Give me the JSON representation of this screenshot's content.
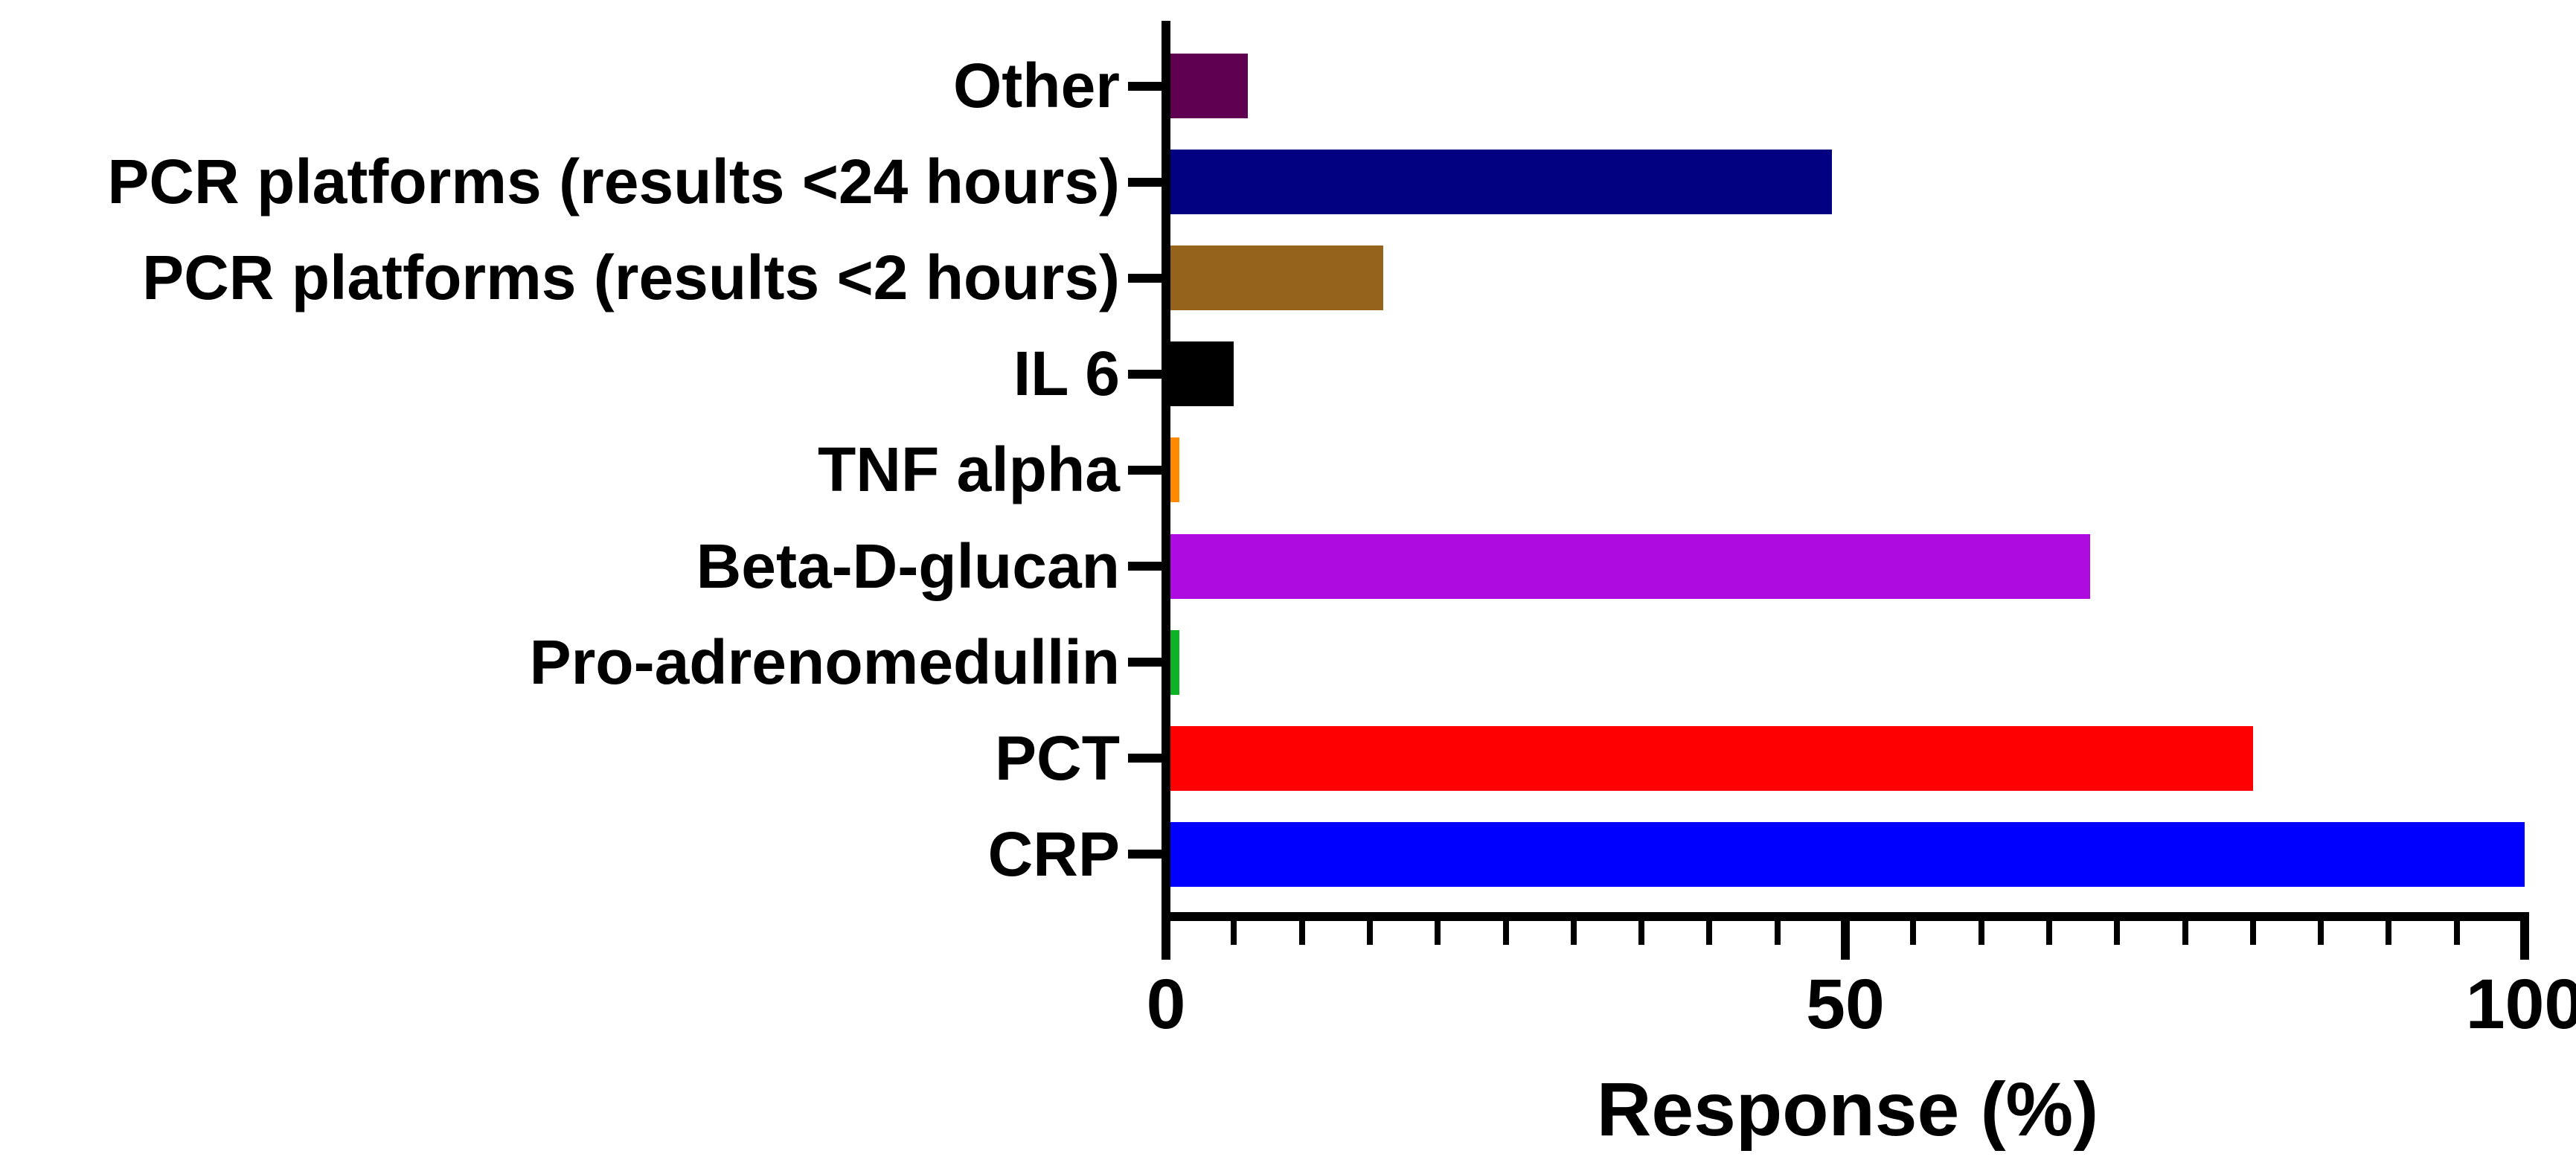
{
  "figure": {
    "background_color": "#FFFFFF",
    "axis_color": "#000000",
    "text_color": "#000000"
  },
  "chart_data": {
    "type": "bar",
    "orientation": "horizontal",
    "title": "",
    "xlabel": "Response (%)",
    "ylabel": "",
    "categories": [
      "Other",
      "PCR platforms (results <24 hours)",
      "PCR platforms (results <2 hours)",
      "IL 6",
      "TNF alpha",
      "Beta-D-glucan",
      "Pro-adrenomedullin",
      "PCT",
      "CRP"
    ],
    "values": [
      6,
      49,
      16,
      5,
      1,
      68,
      1,
      80,
      100
    ],
    "bar_colors": [
      "#5F0050",
      "#000080",
      "#96631C",
      "#000000",
      "#FF8A00",
      "#AD0BE0",
      "#0DB227",
      "#FF0000",
      "#0000FF"
    ],
    "xlim": [
      0,
      100
    ],
    "x_major_ticks": [
      0,
      50,
      100
    ],
    "x_tick_labels": [
      "0",
      "50",
      "100"
    ],
    "x_minor_tick_step": 5,
    "grid": false,
    "legend": null
  }
}
